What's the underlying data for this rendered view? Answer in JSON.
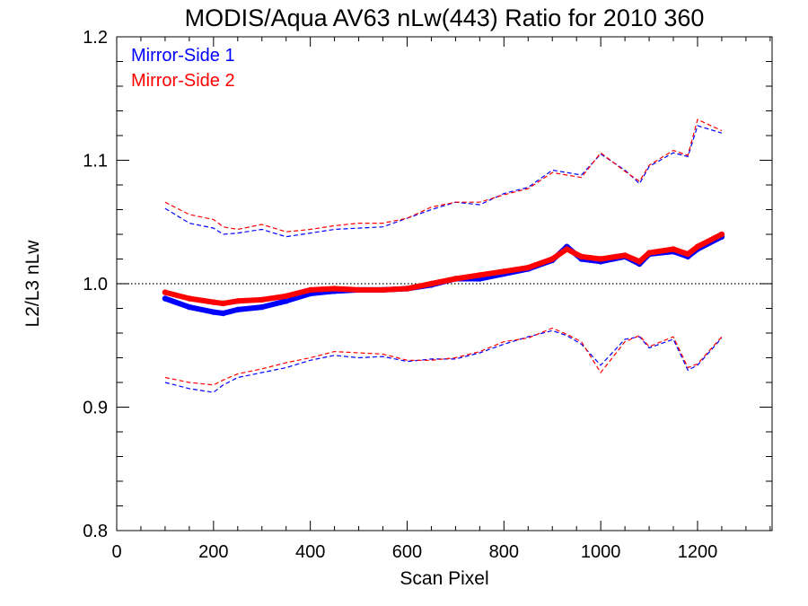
{
  "chart_data": {
    "type": "line",
    "title": "MODIS/Aqua AV63 nLw(443) Ratio for 2010 360",
    "xlabel": "Scan Pixel",
    "ylabel": "L2/L3 nLw",
    "xlim": [
      0,
      1354
    ],
    "ylim": [
      0.8,
      1.2
    ],
    "x_ticks": [
      "0",
      "200",
      "400",
      "600",
      "800",
      "1000",
      "1200"
    ],
    "y_ticks": [
      "0.8",
      "0.9",
      "1.0",
      "1.1",
      "1.2"
    ],
    "reference_line": {
      "y": 1.0,
      "style": "dotted"
    },
    "legend_position": "top-left",
    "colors": {
      "ms1": "#0000ff",
      "ms2": "#ff0000",
      "reference": "#000000"
    },
    "series": [
      {
        "name": "Mirror-Side 1",
        "color": "#0000ff",
        "x": [
          100,
          150,
          200,
          220,
          250,
          300,
          350,
          400,
          450,
          500,
          550,
          600,
          650,
          700,
          750,
          800,
          850,
          900,
          930,
          960,
          1000,
          1050,
          1080,
          1100,
          1150,
          1180,
          1200,
          1250
        ],
        "mean": [
          0.988,
          0.981,
          0.977,
          0.976,
          0.979,
          0.981,
          0.986,
          0.992,
          0.994,
          0.995,
          0.995,
          0.996,
          0.999,
          1.004,
          1.004,
          1.008,
          1.012,
          1.019,
          1.03,
          1.02,
          1.018,
          1.022,
          1.016,
          1.024,
          1.026,
          1.022,
          1.028,
          1.038
        ],
        "upper": [
          1.061,
          1.049,
          1.045,
          1.04,
          1.041,
          1.044,
          1.038,
          1.041,
          1.044,
          1.045,
          1.046,
          1.053,
          1.06,
          1.066,
          1.064,
          1.073,
          1.078,
          1.092,
          1.09,
          1.088,
          1.105,
          1.092,
          1.081,
          1.095,
          1.106,
          1.103,
          1.128,
          1.122
        ],
        "lower": [
          0.92,
          0.915,
          0.912,
          0.918,
          0.924,
          0.928,
          0.932,
          0.938,
          0.942,
          0.94,
          0.941,
          0.937,
          0.939,
          0.939,
          0.944,
          0.951,
          0.957,
          0.962,
          0.958,
          0.951,
          0.934,
          0.955,
          0.957,
          0.948,
          0.955,
          0.93,
          0.934,
          0.956
        ]
      },
      {
        "name": "Mirror-Side 2",
        "color": "#ff0000",
        "x": [
          100,
          150,
          200,
          220,
          250,
          300,
          350,
          400,
          450,
          500,
          550,
          600,
          650,
          700,
          750,
          800,
          850,
          900,
          930,
          960,
          1000,
          1050,
          1080,
          1100,
          1150,
          1180,
          1200,
          1250
        ],
        "mean": [
          0.993,
          0.988,
          0.985,
          0.984,
          0.986,
          0.987,
          0.99,
          0.995,
          0.996,
          0.995,
          0.995,
          0.996,
          1.0,
          1.004,
          1.007,
          1.01,
          1.013,
          1.02,
          1.028,
          1.022,
          1.02,
          1.023,
          1.018,
          1.025,
          1.028,
          1.024,
          1.03,
          1.04
        ],
        "upper": [
          1.066,
          1.056,
          1.052,
          1.046,
          1.044,
          1.048,
          1.042,
          1.044,
          1.047,
          1.049,
          1.049,
          1.053,
          1.062,
          1.066,
          1.066,
          1.072,
          1.077,
          1.09,
          1.088,
          1.086,
          1.106,
          1.091,
          1.083,
          1.096,
          1.108,
          1.104,
          1.133,
          1.124
        ],
        "lower": [
          0.924,
          0.92,
          0.918,
          0.922,
          0.927,
          0.931,
          0.936,
          0.94,
          0.945,
          0.944,
          0.943,
          0.938,
          0.938,
          0.94,
          0.945,
          0.953,
          0.956,
          0.964,
          0.959,
          0.953,
          0.928,
          0.953,
          0.958,
          0.949,
          0.957,
          0.932,
          0.935,
          0.957
        ]
      }
    ]
  }
}
